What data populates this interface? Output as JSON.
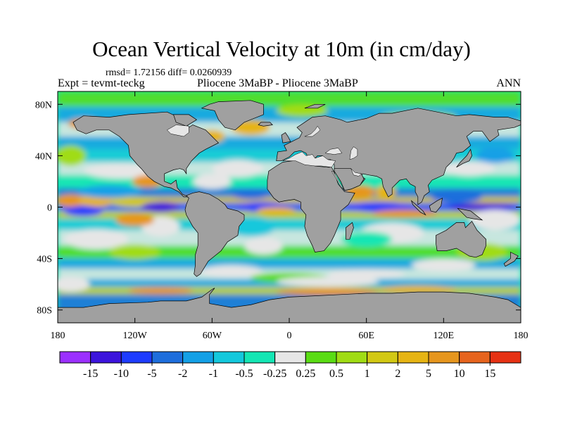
{
  "title": "Ocean Vertical Velocity at 10m (in cm/day)",
  "stats": "rmsd= 1.72156 diff= 0.0260939",
  "expt": "Expt = tevmt-teckg",
  "runs": "Pliocene   3MaBP - Pliocene   3MaBP",
  "season": "ANN",
  "axes": {
    "lat_ticks": [
      {
        "value": 80,
        "label": "80N"
      },
      {
        "value": 40,
        "label": "40N"
      },
      {
        "value": 0,
        "label": "0"
      },
      {
        "value": -40,
        "label": "40S"
      },
      {
        "value": -80,
        "label": "80S"
      }
    ],
    "lon_ticks": [
      {
        "value": -180,
        "label": "180"
      },
      {
        "value": -120,
        "label": "120W"
      },
      {
        "value": -60,
        "label": "60W"
      },
      {
        "value": 0,
        "label": "0"
      },
      {
        "value": 60,
        "label": "60E"
      },
      {
        "value": 120,
        "label": "120E"
      },
      {
        "value": 180,
        "label": "180"
      }
    ],
    "lat_range": [
      -90,
      90
    ],
    "lon_range": [
      -180,
      180
    ]
  },
  "colorbar": {
    "colors": [
      "#9b30ff",
      "#3c14dc",
      "#1e3cff",
      "#1e6edc",
      "#14a0e6",
      "#14c8dc",
      "#14e6b4",
      "#e6e6e6",
      "#5adc14",
      "#a0dc14",
      "#d2c814",
      "#e6b414",
      "#e6961e",
      "#e6641e",
      "#e63214"
    ],
    "labels": [
      "-15",
      "-10",
      "-5",
      "-2",
      "-1",
      "-0.5",
      "-0.25",
      "0.25",
      "0.5",
      "1",
      "2",
      "5",
      "10",
      "15"
    ]
  },
  "land_color": "#a0a0a0"
}
